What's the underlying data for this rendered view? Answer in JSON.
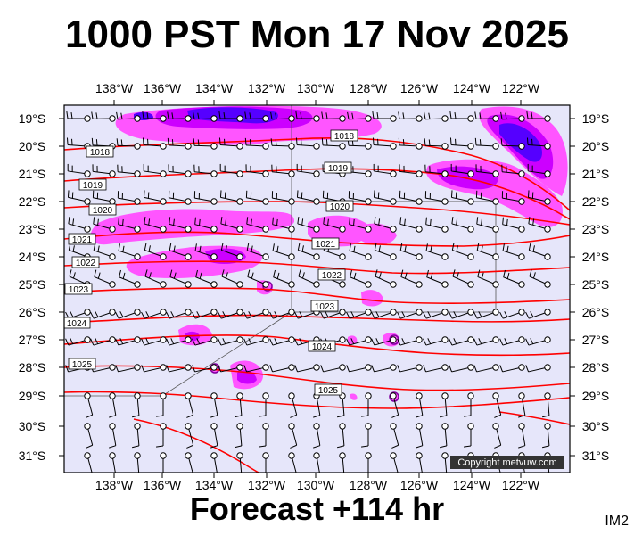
{
  "title": "1000 PST Mon 17 Nov 2025",
  "subtitle": "Forecast +114 hr",
  "tag": "IM2",
  "copyright": "Copyright metvuw.com",
  "map": {
    "lon_labels": [
      "138°W",
      "136°W",
      "134°W",
      "132°W",
      "130°W",
      "128°W",
      "126°W",
      "124°W",
      "122°W"
    ],
    "lat_labels": [
      "19°S",
      "20°S",
      "21°S",
      "22°S",
      "23°S",
      "24°S",
      "25°S",
      "26°S",
      "27°S",
      "28°S",
      "29°S",
      "30°S",
      "31°S"
    ],
    "isobar_labels": [
      "1018",
      "1018",
      "1019",
      "1019",
      "1020",
      "1020",
      "1021",
      "1021",
      "1022",
      "1022",
      "1023",
      "1023",
      "1024",
      "1024",
      "1025",
      "1025"
    ],
    "colors": {
      "background": "#e6e6fa",
      "isobar": "#ff0000",
      "rain_light": "#ff55ff",
      "rain_mid": "#cc00ff",
      "rain_heavy": "#5500ff"
    }
  }
}
